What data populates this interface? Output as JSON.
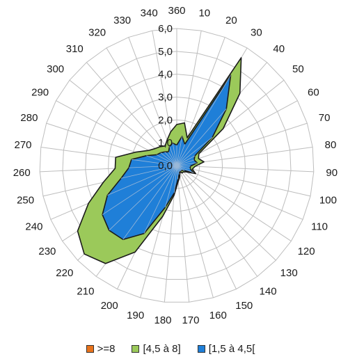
{
  "chart_data": {
    "type": "radar",
    "title": "",
    "categories": [
      "360",
      "10",
      "20",
      "30",
      "40",
      "50",
      "60",
      "70",
      "80",
      "90",
      "100",
      "110",
      "120",
      "130",
      "140",
      "150",
      "160",
      "170",
      "180",
      "190",
      "200",
      "210",
      "220",
      "230",
      "240",
      "250",
      "260",
      "270",
      "280",
      "290",
      "300",
      "310",
      "320",
      "330",
      "340"
    ],
    "radial_ticks": [
      "0,0",
      "1,0",
      "2,0",
      "3,0",
      "4,0",
      "5,0",
      "6,0"
    ],
    "rmax": 6.0,
    "grid": true,
    "legend_position": "bottom",
    "series": [
      {
        "name": ">=8",
        "color": "#E8731C",
        "values": [
          0,
          0,
          0,
          0,
          0,
          0,
          0,
          0,
          0,
          0,
          0,
          0,
          0,
          0,
          0,
          0,
          0,
          0,
          0,
          0,
          0,
          0,
          0,
          0,
          0,
          0,
          0,
          0,
          0,
          0,
          0,
          0,
          0,
          0,
          0
        ]
      },
      {
        "name": "[4,5 à 8]",
        "color": "#9BC95A",
        "values": [
          1.8,
          1.9,
          1.3,
          5.5,
          4.2,
          2.6,
          1.1,
          1.0,
          1.2,
          0.8,
          0.7,
          0.9,
          0.5,
          0.4,
          0.4,
          0.3,
          0.5,
          0.7,
          1.3,
          2.3,
          4.2,
          5.3,
          5.6,
          5.2,
          4.2,
          3.3,
          2.7,
          2.7,
          1.9,
          1.4,
          1.2,
          1.1,
          1.0,
          1.2,
          1.5
        ]
      },
      {
        "name": "[1,5 à 4,5[",
        "color": "#1F7FD8",
        "values": [
          0.9,
          1.3,
          1.0,
          4.6,
          3.3,
          2.0,
          0.9,
          0.8,
          0.9,
          0.6,
          0.6,
          0.8,
          0.4,
          0.3,
          0.3,
          0.3,
          0.4,
          0.6,
          1.2,
          1.9,
          3.3,
          4.0,
          4.1,
          3.9,
          3.3,
          2.5,
          2.1,
          2.0,
          1.4,
          1.0,
          0.9,
          0.8,
          0.7,
          0.9,
          1.0
        ]
      }
    ]
  }
}
